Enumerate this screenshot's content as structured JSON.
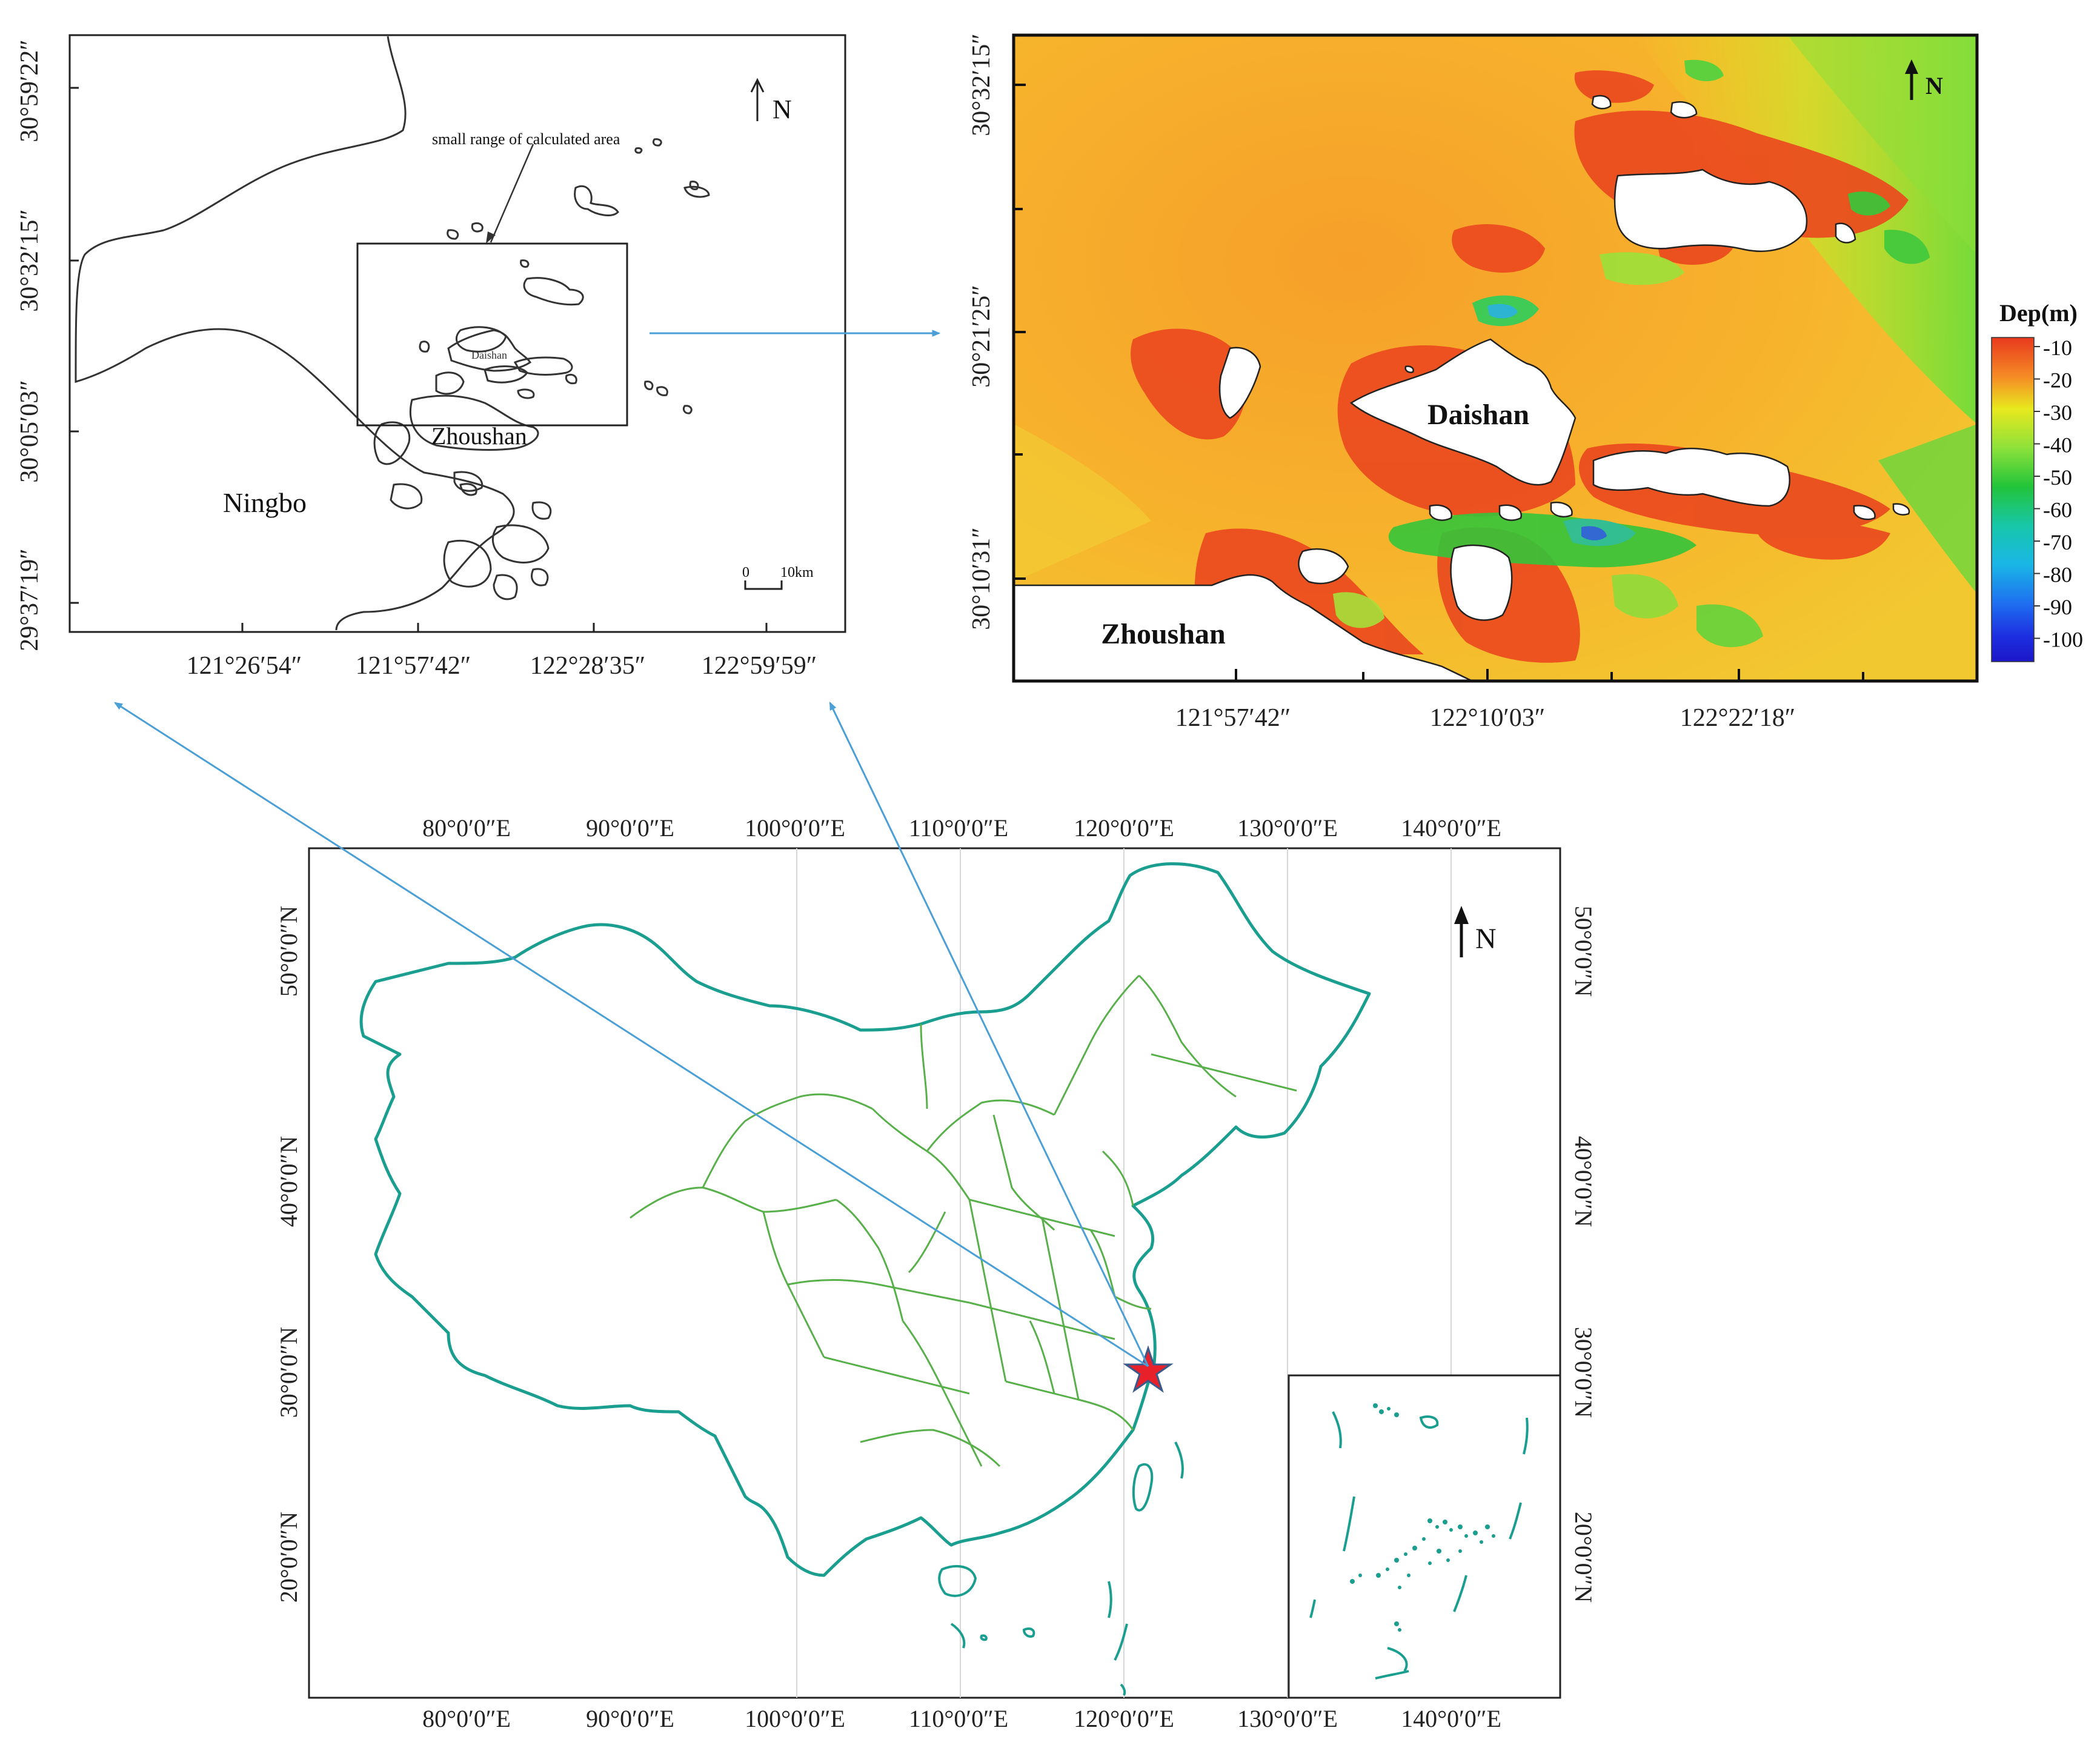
{
  "panel_a": {
    "label_ningbo": "Ningbo",
    "label_zhoushan": "Zhoushan",
    "label_daishan": "Daishan",
    "annotation": "small range of calculated area",
    "north": "N",
    "scale_zero": "0",
    "scale_label": "10km",
    "lat_ticks": [
      "30°59′22″",
      "30°32′15″",
      "30°05′03″",
      "29°37′19″"
    ],
    "lon_ticks": [
      "121°26′54″",
      "121°57′42″",
      "122°28′35″",
      "122°59′59″"
    ]
  },
  "panel_b": {
    "label_daishan": "Daishan",
    "label_zhoushan": "Zhoushan",
    "north": "N",
    "lat_ticks": [
      "30°32′15″",
      "30°21′25″",
      "30°10′31″"
    ],
    "lon_ticks": [
      "121°57′42″",
      "122°10′03″",
      "122°22′18″"
    ],
    "legend": {
      "title": "Dep(m)",
      "labels": [
        "-10",
        "-20",
        "-30",
        "-40",
        "-50",
        "-60",
        "-70",
        "-80",
        "-90",
        "-100"
      ],
      "colors": [
        "#e8391e",
        "#f7a22b",
        "#e6e81e",
        "#8ee23a",
        "#22c43a",
        "#18c7a8",
        "#19b6e6",
        "#1f6ff0",
        "#1d2fe0",
        "#1b17c8"
      ]
    }
  },
  "panel_c": {
    "north": "N",
    "lon_ticks": [
      "80°0′0″E",
      "90°0′0″E",
      "100°0′0″E",
      "110°0′0″E",
      "120°0′0″E",
      "130°0′0″E",
      "140°0′0″E"
    ],
    "lat_ticks": [
      "50°0′0″N",
      "40°0′0″N",
      "30°0′0″N",
      "20°0′0″N"
    ]
  },
  "colors": {
    "arrow": "#4a9fd6",
    "china_border": "#1a9e8f",
    "province_border": "#58b04a",
    "star": "#e8202a"
  }
}
